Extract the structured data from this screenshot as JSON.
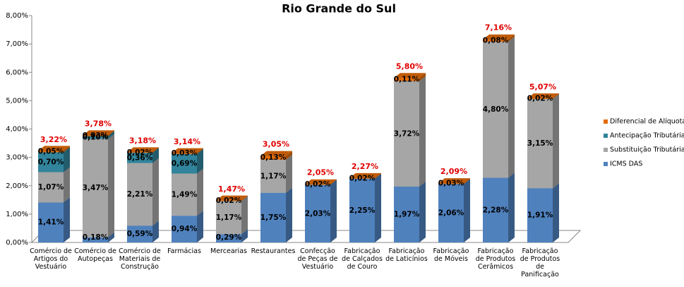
{
  "chart_data": {
    "type": "bar3d_stacked",
    "title": "Rio Grande do Sul",
    "categories": [
      "Comércio de Artigos do Vestuário",
      "Comércio de Autopeças",
      "Comércio de Materiais de Construção",
      "Farmácias",
      "Mercearias",
      "Restaurantes",
      "Confecção de Peças de Vestuário",
      "Fabricação de Calçados de Couro",
      "Fabricação de Laticínios",
      "Fabricação de Móveis",
      "Fabricação de Produtos Cerâmicos",
      "Fabricação de Produtos de Panificação"
    ],
    "series": [
      {
        "name": "ICMS DAS",
        "color": "#4f81bd",
        "values": [
          1.41,
          0.18,
          0.59,
          0.94,
          0.29,
          1.75,
          2.03,
          2.25,
          1.97,
          2.06,
          2.28,
          1.91
        ],
        "value_labels": [
          "1,41%",
          "0,18%",
          "0,59%",
          "0,94%",
          "0,29%",
          "1,75%",
          "2,03%",
          "2,25%",
          "1,97%",
          "2,06%",
          "2,28%",
          "1,91%"
        ]
      },
      {
        "name": "Substituição Tributária",
        "color": "#a6a6a6",
        "values": [
          1.07,
          3.47,
          2.21,
          1.49,
          1.17,
          1.17,
          null,
          null,
          3.72,
          null,
          4.8,
          3.15
        ],
        "value_labels": [
          "1,07%",
          "3,47%",
          "2,21%",
          "1,49%",
          "1,17%",
          "1,17%",
          null,
          null,
          "3,72%",
          null,
          "4,80%",
          "3,15%"
        ]
      },
      {
        "name": "Antecipação Tributária",
        "color": "#31849b",
        "values": [
          0.7,
          0.1,
          0.36,
          0.69,
          null,
          null,
          null,
          null,
          null,
          null,
          null,
          null
        ],
        "value_labels": [
          "0,70%",
          "0,10%",
          "0,36%",
          "0,69%",
          null,
          null,
          null,
          null,
          null,
          null,
          null,
          null
        ]
      },
      {
        "name": "Diferencial de Alíquota",
        "color": "#e36c09",
        "values": [
          0.05,
          0.03,
          0.02,
          0.03,
          0.02,
          0.13,
          0.02,
          0.02,
          0.11,
          0.03,
          0.08,
          0.02
        ],
        "value_labels": [
          "0,05%",
          "0,03%",
          "0,02%",
          "0,03%",
          "0,02%",
          "0,13%",
          "0,02%",
          "0,02%",
          "0,11%",
          "0,03%",
          "0,08%",
          "0,02%"
        ]
      }
    ],
    "totals": [
      3.22,
      3.78,
      3.18,
      3.14,
      1.47,
      3.05,
      2.05,
      2.27,
      5.8,
      2.09,
      7.16,
      5.07
    ],
    "total_labels": [
      "3,22%",
      "3,78%",
      "3,18%",
      "3,14%",
      "1,47%",
      "3,05%",
      "2,05%",
      "2,27%",
      "5,80%",
      "2,09%",
      "7,16%",
      "5,07%"
    ],
    "ylim": [
      0,
      8
    ],
    "yticks": [
      {
        "value": 0,
        "label": "0,00%"
      },
      {
        "value": 1,
        "label": "1,00%"
      },
      {
        "value": 2,
        "label": "2,00%"
      },
      {
        "value": 3,
        "label": "3,00%"
      },
      {
        "value": 4,
        "label": "4,00%"
      },
      {
        "value": 5,
        "label": "5,00%"
      },
      {
        "value": 6,
        "label": "6,00%"
      },
      {
        "value": 7,
        "label": "7,00%"
      },
      {
        "value": 8,
        "label": "8,00%"
      }
    ],
    "legend": "right"
  }
}
